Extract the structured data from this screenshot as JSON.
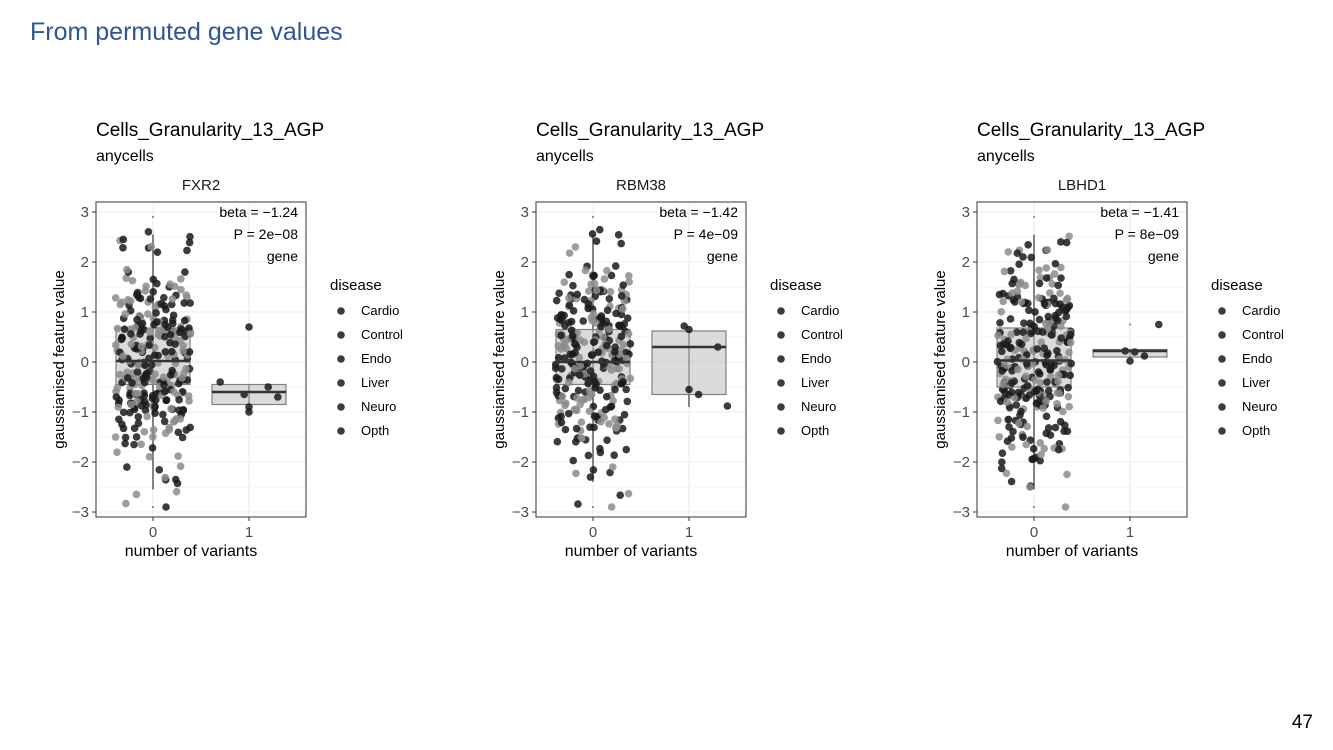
{
  "slide": {
    "title": "From permuted gene values",
    "page_number": "47"
  },
  "colors": {
    "title": "#2f5597",
    "points": "#1a1a1a",
    "box_fill": "#bdbdbd",
    "box_line": "#7f7f7f",
    "median": "#333333"
  },
  "chart_data": [
    {
      "type": "scatter",
      "title": "Cells_Granularity_13_AGP",
      "subtitle": "anycells",
      "facet_label": "FXR2",
      "xlabel": "number of variants",
      "ylabel": "gaussianised feature value",
      "x_ticks": [
        "0",
        "1"
      ],
      "y_ticks": [
        "3",
        "2",
        "1",
        "0",
        "−1",
        "−2",
        "−3"
      ],
      "ylim": [
        -3.1,
        3.2
      ],
      "annotations": [
        "beta = −1.24",
        "P = 2e−08",
        "gene"
      ],
      "legend": {
        "title": "disease",
        "items": [
          "Cardio",
          "Control",
          "Endo",
          "Liver",
          "Neuro",
          "Opth"
        ]
      },
      "boxes": [
        {
          "x": 0,
          "q1": -0.45,
          "median": 0.02,
          "q3": 0.68,
          "whisker_low": -2.55,
          "whisker_high": 2.55,
          "outlier_marks": [
            2.9,
            -2.9
          ]
        },
        {
          "x": 1,
          "q1": -0.85,
          "median": -0.6,
          "q3": -0.45,
          "whisker_low": -0.85,
          "whisker_high": -0.45,
          "outlier_marks": []
        }
      ],
      "points_group1": [
        {
          "x": 1.0,
          "y": 0.7
        },
        {
          "x": 0.7,
          "y": -0.4
        },
        {
          "x": 1.2,
          "y": -0.5
        },
        {
          "x": 1.3,
          "y": -0.7
        },
        {
          "x": 1.0,
          "y": -0.9
        },
        {
          "x": 1.0,
          "y": -1.0
        },
        {
          "x": 0.95,
          "y": -0.65
        }
      ],
      "group0": {
        "n": 300,
        "seed": 11
      }
    },
    {
      "type": "scatter",
      "title": "Cells_Granularity_13_AGP",
      "subtitle": "anycells",
      "facet_label": "RBM38",
      "xlabel": "number of variants",
      "ylabel": "gaussianised feature value",
      "x_ticks": [
        "0",
        "1"
      ],
      "y_ticks": [
        "3",
        "2",
        "1",
        "0",
        "−1",
        "−2",
        "−3"
      ],
      "ylim": [
        -3.1,
        3.2
      ],
      "annotations": [
        "beta = −1.42",
        "P = 4e−09",
        "gene"
      ],
      "legend": {
        "title": "disease",
        "items": [
          "Cardio",
          "Control",
          "Endo",
          "Liver",
          "Neuro",
          "Opth"
        ]
      },
      "boxes": [
        {
          "x": 0,
          "q1": -0.45,
          "median": 0.0,
          "q3": 0.65,
          "whisker_low": -2.4,
          "whisker_high": 2.55,
          "outlier_marks": [
            2.9,
            -2.9
          ]
        },
        {
          "x": 1,
          "q1": -0.65,
          "median": 0.3,
          "q3": 0.62,
          "whisker_low": -0.9,
          "whisker_high": 0.62,
          "outlier_marks": []
        }
      ],
      "points_group1": [
        {
          "x": 0.95,
          "y": 0.72
        },
        {
          "x": 1.0,
          "y": 0.65
        },
        {
          "x": 1.3,
          "y": 0.3
        },
        {
          "x": 1.1,
          "y": -0.65
        },
        {
          "x": 1.4,
          "y": -0.88
        },
        {
          "x": 1.0,
          "y": -0.55
        }
      ],
      "group0": {
        "n": 300,
        "seed": 23
      }
    },
    {
      "type": "scatter",
      "title": "Cells_Granularity_13_AGP",
      "subtitle": "anycells",
      "facet_label": "LBHD1",
      "xlabel": "number of variants",
      "ylabel": "gaussianised feature value",
      "x_ticks": [
        "0",
        "1"
      ],
      "y_ticks": [
        "3",
        "2",
        "1",
        "0",
        "−1",
        "−2",
        "−3"
      ],
      "ylim": [
        -3.1,
        3.2
      ],
      "annotations": [
        "beta = −1.41",
        "P = 8e−09",
        "gene"
      ],
      "legend": {
        "title": "disease",
        "items": [
          "Cardio",
          "Control",
          "Endo",
          "Liver",
          "Neuro",
          "Opth"
        ]
      },
      "boxes": [
        {
          "x": 0,
          "q1": -0.5,
          "median": 0.03,
          "q3": 0.68,
          "whisker_low": -2.55,
          "whisker_high": 2.55,
          "outlier_marks": [
            2.9,
            -2.9
          ]
        },
        {
          "x": 1,
          "q1": 0.1,
          "median": 0.22,
          "q3": 0.25,
          "whisker_low": 0.1,
          "whisker_high": 0.25,
          "outlier_marks": [
            0.75
          ]
        }
      ],
      "points_group1": [
        {
          "x": 0.95,
          "y": 0.22
        },
        {
          "x": 1.05,
          "y": 0.2
        },
        {
          "x": 1.0,
          "y": 0.02
        },
        {
          "x": 1.15,
          "y": 0.12
        },
        {
          "x": 1.3,
          "y": 0.75
        }
      ],
      "group0": {
        "n": 300,
        "seed": 37
      }
    }
  ]
}
